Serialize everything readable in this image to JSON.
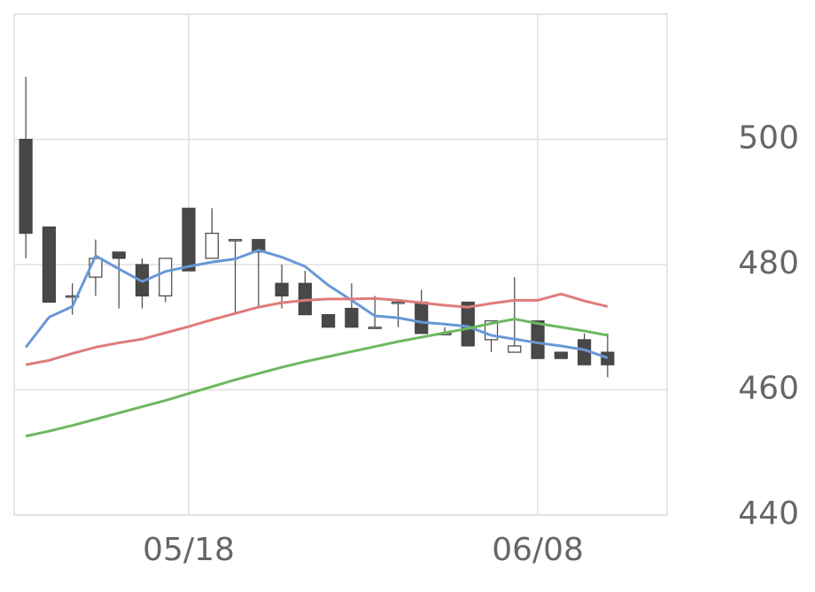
{
  "chart_data": {
    "type": "candlestick",
    "categories": [
      null,
      null,
      null,
      null,
      null,
      null,
      null,
      "05/18",
      null,
      null,
      null,
      null,
      null,
      null,
      null,
      null,
      null,
      null,
      null,
      null,
      null,
      null,
      "06/08",
      null,
      null,
      null
    ],
    "open": [
      500,
      486,
      475,
      478,
      482,
      480,
      475,
      489,
      481,
      484,
      484,
      477,
      477,
      472,
      473,
      470,
      474,
      474,
      469,
      474,
      468,
      466,
      471,
      466,
      468,
      466
    ],
    "high": [
      510,
      486,
      477,
      484,
      482,
      481,
      481,
      489,
      489,
      484,
      484,
      480,
      479,
      472,
      477,
      475,
      474,
      476,
      470,
      474,
      471,
      478,
      471,
      466,
      469,
      469
    ],
    "low": [
      481,
      474,
      472,
      475,
      473,
      473,
      474,
      479,
      481,
      472,
      473,
      473,
      472,
      470,
      470,
      470,
      470,
      469,
      469,
      467,
      466,
      466,
      465,
      465,
      464,
      462
    ],
    "close": [
      485,
      474,
      475,
      481,
      481,
      475,
      481,
      479,
      485,
      484,
      482,
      475,
      472,
      470,
      470,
      470,
      474,
      469,
      469,
      467,
      471,
      467,
      465,
      465,
      464,
      464
    ],
    "up_color": "#ffffff",
    "down_color": "#484848",
    "series": [
      {
        "color": "#6898d6",
        "values": [
          466.8,
          471.6,
          473.3,
          481.4,
          479.3,
          477.3,
          478.9,
          479.7,
          480.4,
          480.9,
          482.3,
          481.2,
          479.7,
          476.7,
          474.3,
          471.8,
          471.5,
          470.8,
          470.5,
          470.1,
          468.7,
          468.1,
          467.5,
          467.0,
          466.4,
          465.1
        ]
      },
      {
        "color": "#e07b7b",
        "values": [
          464.0,
          464.7,
          465.8,
          466.8,
          467.5,
          468.1,
          469.1,
          470.1,
          471.2,
          472.2,
          473.2,
          473.9,
          474.3,
          474.5,
          474.5,
          474.6,
          474.3,
          473.9,
          473.5,
          473.2,
          473.8,
          474.3,
          474.3,
          475.3,
          474.2,
          473.3
        ]
      },
      {
        "color": "#6cb85e",
        "values": [
          452.6,
          453.4,
          454.3,
          455.3,
          456.3,
          457.3,
          458.3,
          459.4,
          460.5,
          461.6,
          462.6,
          463.6,
          464.5,
          465.3,
          466.1,
          466.9,
          467.7,
          468.4,
          469.1,
          469.8,
          470.6,
          471.3,
          470.6,
          470.0,
          469.4,
          468.7
        ]
      }
    ],
    "ylim": [
      440,
      520
    ],
    "yticks": [
      440,
      460,
      480,
      500
    ],
    "grid": true
  }
}
